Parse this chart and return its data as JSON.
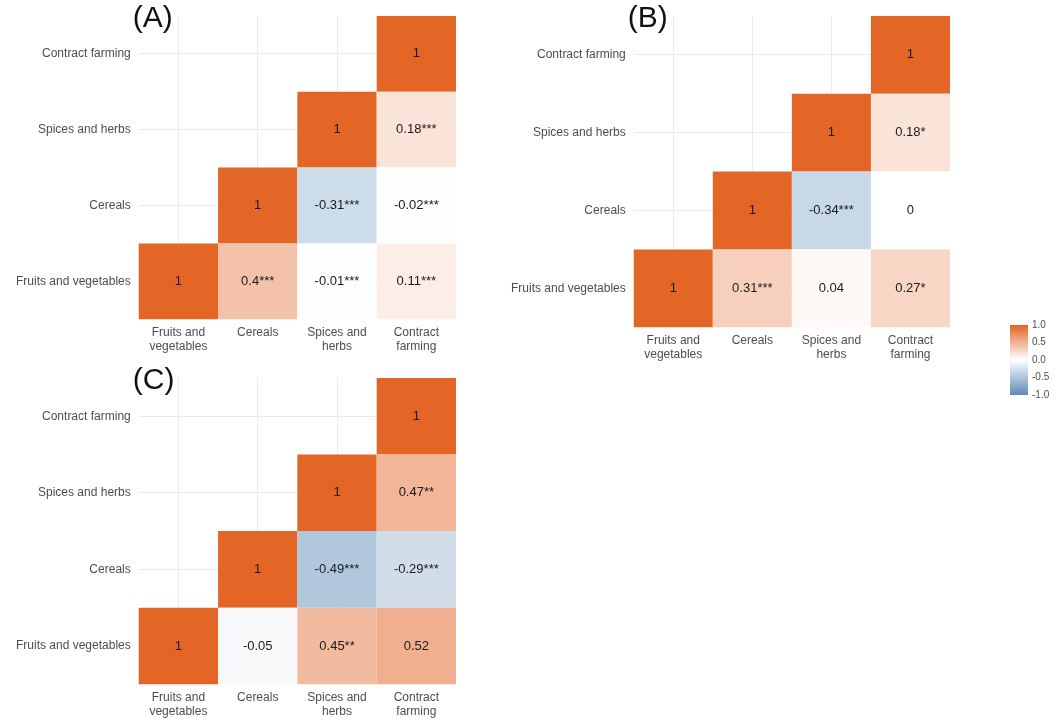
{
  "chart_data": [
    {
      "type": "heatmap",
      "title": "(A)",
      "grid": true,
      "categories": [
        "Fruits and vegetables",
        "Cereals",
        "Spices and herbs",
        "Contract farming"
      ],
      "y_categories": [
        "Contract farming",
        "Spices and herbs",
        "Cereals",
        "Fruits and vegetables"
      ],
      "cells": [
        [
          null,
          null,
          null,
          1
        ],
        [
          null,
          null,
          1,
          0.18
        ],
        [
          null,
          1,
          -0.31,
          -0.02
        ],
        [
          1,
          0.4,
          -0.01,
          0.11
        ]
      ],
      "cell_labels": [
        [
          null,
          null,
          null,
          "1"
        ],
        [
          null,
          null,
          "1",
          "0.18***"
        ],
        [
          null,
          "1",
          "-0.31***",
          "-0.02***"
        ],
        [
          "1",
          "0.4***",
          "-0.01***",
          "0.11***"
        ]
      ]
    },
    {
      "type": "heatmap",
      "title": "(B)",
      "grid": true,
      "clim": [
        -1,
        1
      ],
      "cticks": [
        {
          "value": 1,
          "label": "1.0"
        },
        {
          "value": 0.5,
          "label": "0.5"
        },
        {
          "value": 0,
          "label": "0.0"
        },
        {
          "value": -0.5,
          "label": "-0.5"
        },
        {
          "value": -1,
          "label": "-1.0"
        }
      ],
      "categories": [
        "Fruits and vegetables",
        "Cereals",
        "Spices and herbs",
        "Contract farming"
      ],
      "y_categories": [
        "Contract farming",
        "Spices and herbs",
        "Cereals",
        "Fruits and vegetables"
      ],
      "cells": [
        [
          null,
          null,
          null,
          1
        ],
        [
          null,
          null,
          1,
          0.18
        ],
        [
          null,
          1,
          -0.34,
          0
        ],
        [
          1,
          0.31,
          0.04,
          0.27
        ]
      ],
      "cell_labels": [
        [
          null,
          null,
          null,
          "1"
        ],
        [
          null,
          null,
          "1",
          "0.18*"
        ],
        [
          null,
          "1",
          "-0.34***",
          "0"
        ],
        [
          "1",
          "0.31***",
          "0.04",
          "0.27*"
        ]
      ]
    },
    {
      "type": "heatmap",
      "title": "(C)",
      "grid": true,
      "categories": [
        "Fruits and vegetables",
        "Cereals",
        "Spices and herbs",
        "Contract farming"
      ],
      "y_categories": [
        "Contract farming",
        "Spices and herbs",
        "Cereals",
        "Fruits and vegetables"
      ],
      "cells": [
        [
          null,
          null,
          null,
          1
        ],
        [
          null,
          null,
          1,
          0.47
        ],
        [
          null,
          1,
          -0.49,
          -0.29
        ],
        [
          1,
          -0.05,
          0.45,
          0.52
        ]
      ],
      "cell_labels": [
        [
          null,
          null,
          null,
          "1"
        ],
        [
          null,
          null,
          "1",
          "0.47**"
        ],
        [
          null,
          "1",
          "-0.49***",
          "-0.29***"
        ],
        [
          "1",
          "-0.05",
          "0.45**",
          "0.52"
        ]
      ]
    }
  ]
}
